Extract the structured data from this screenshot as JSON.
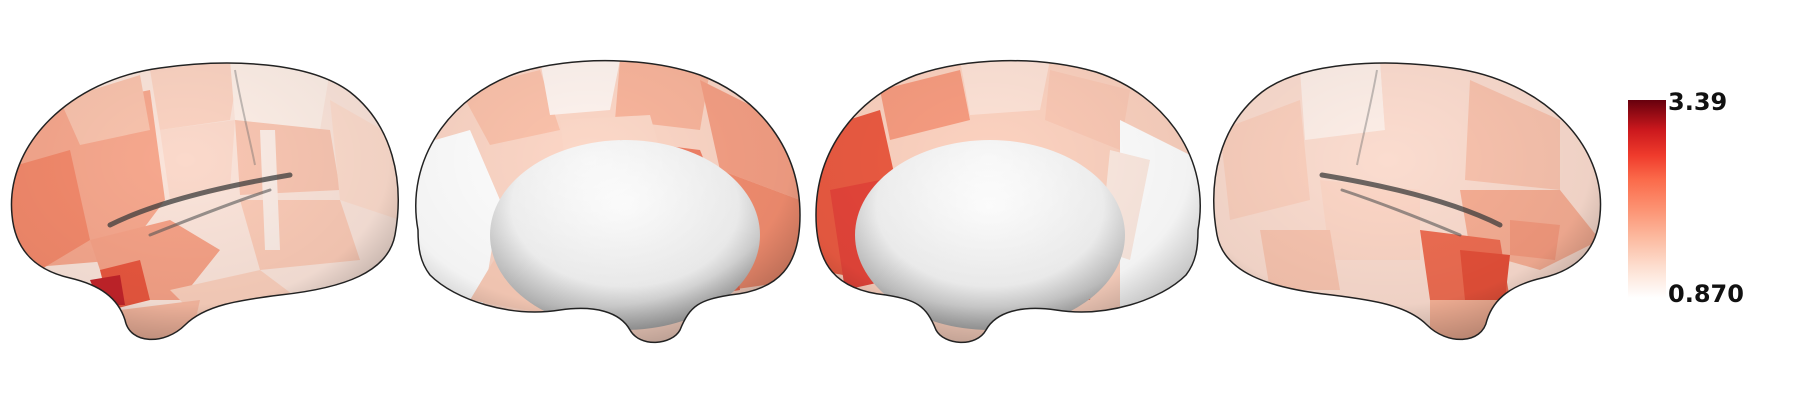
{
  "views": [
    {
      "name": "left-lateral"
    },
    {
      "name": "left-medial"
    },
    {
      "name": "right-medial"
    },
    {
      "name": "right-lateral"
    }
  ],
  "colorbar": {
    "max_label": "3.39",
    "min_label": "0.870",
    "colors": [
      "#ffffff",
      "#fde0d2",
      "#fcbba1",
      "#fc9272",
      "#fb6a4a",
      "#ef3b2c",
      "#cb181d",
      "#99000d",
      "#67000d"
    ]
  }
}
